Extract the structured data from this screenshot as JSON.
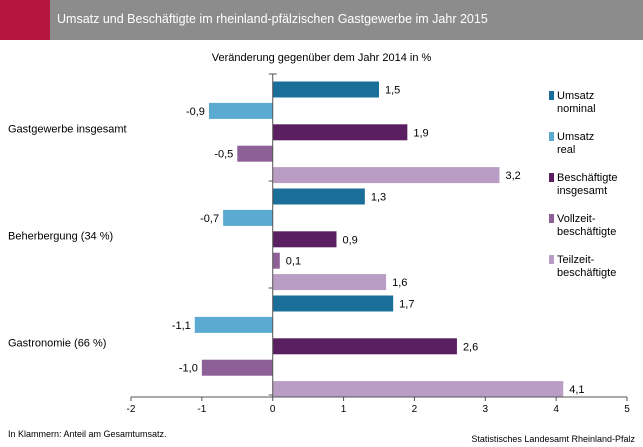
{
  "chart_data": {
    "type": "bar",
    "orientation": "horizontal",
    "title": "Umsatz und Beschäftigte im rheinland-pfälzischen Gastgewerbe im Jahr 2015",
    "subtitle": "Veränderung gegenüber dem Jahr 2014 in %",
    "categories": [
      "Gastgewerbe insgesamt",
      "Beherbergung (34 %)",
      "Gastronomie (66 %)"
    ],
    "series": [
      {
        "name": "Umsatz nominal",
        "legend": [
          "Umsatz",
          "nominal"
        ],
        "color": "#1a6e9a",
        "values": [
          1.5,
          1.3,
          1.7
        ],
        "labels": [
          "1,5",
          "1,3",
          "1,7"
        ]
      },
      {
        "name": "Umsatz real",
        "legend": [
          "Umsatz",
          "real"
        ],
        "color": "#5aaad2",
        "values": [
          -0.9,
          -0.7,
          -1.1
        ],
        "labels": [
          "-0,9",
          "-0,7",
          "-1,1"
        ]
      },
      {
        "name": "Beschäftigte insgesamt",
        "legend": [
          "Beschäftigte",
          "insgesamt"
        ],
        "color": "#5a1f60",
        "values": [
          1.9,
          0.9,
          2.6
        ],
        "labels": [
          "1,9",
          "0,9",
          "2,6"
        ]
      },
      {
        "name": "Vollzeit-beschäftigte",
        "legend": [
          "Vollzeit-",
          "beschäftigte"
        ],
        "color": "#8e6098",
        "values": [
          -0.5,
          0.1,
          -1.0
        ],
        "labels": [
          "-0,5",
          "0,1",
          "-1,0"
        ]
      },
      {
        "name": "Teilzeit-beschäftigte",
        "legend": [
          "Teilzeit-",
          "beschäftigte"
        ],
        "color": "#b99dc4",
        "values": [
          3.2,
          1.6,
          4.1
        ],
        "labels": [
          "3,2",
          "1,6",
          "4,1"
        ]
      }
    ],
    "xlim": [
      -2,
      5
    ],
    "xticks": [
      -2,
      -1,
      0,
      1,
      2,
      3,
      4,
      5
    ],
    "grid": false,
    "legend_position": "right"
  },
  "footer": {
    "note": "In Klammern: Anteil am Gesamtumsatz.",
    "source": "Statistisches Landesamt Rheinland-Pfalz"
  }
}
